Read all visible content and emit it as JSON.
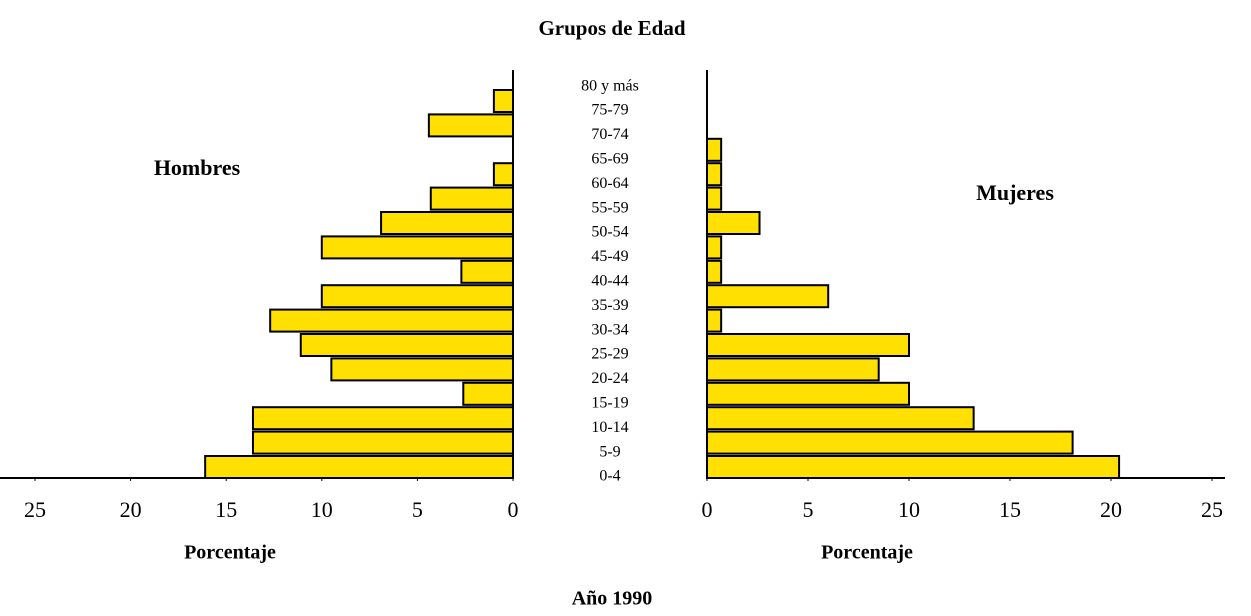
{
  "chart_data": {
    "type": "pyramid",
    "title": "Grupos de Edad",
    "caption": "Año 1990",
    "xlabel": "Porcentaje",
    "categories": [
      "0-4",
      "5-9",
      "10-14",
      "15-19",
      "20-24",
      "25-29",
      "30-34",
      "35-39",
      "40-44",
      "45-49",
      "50-54",
      "55-59",
      "60-64",
      "65-69",
      "70-74",
      "75-79",
      "80 y más"
    ],
    "series": [
      {
        "name": "Hombres",
        "color": "#ffe000",
        "side": "left",
        "values": [
          16.1,
          13.6,
          13.6,
          2.6,
          9.5,
          11.1,
          12.7,
          10.0,
          2.7,
          10.0,
          6.9,
          4.3,
          1.0,
          0,
          4.4,
          1.0,
          0
        ]
      },
      {
        "name": "Mujeres",
        "color": "#ffe000",
        "side": "right",
        "values": [
          20.4,
          18.1,
          13.2,
          10.0,
          8.5,
          10.0,
          0.7,
          6.0,
          0.7,
          0.7,
          2.6,
          0.7,
          0.7,
          0.7,
          0,
          0,
          0
        ]
      }
    ],
    "xlim": [
      0,
      25
    ],
    "xticks": [
      0,
      5,
      10,
      15,
      20,
      25
    ]
  }
}
